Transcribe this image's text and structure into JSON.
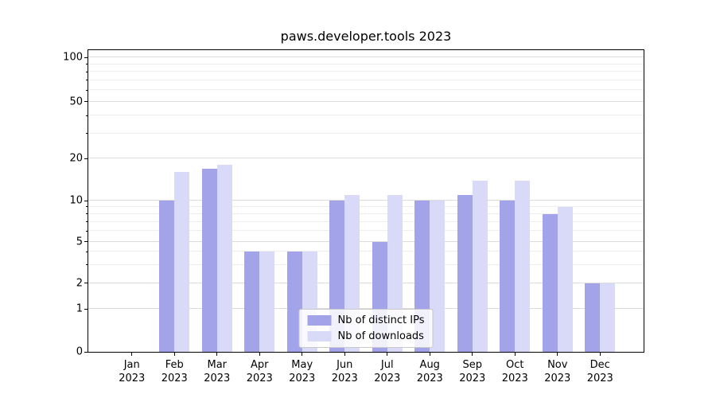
{
  "chart_data": {
    "type": "bar",
    "title": "paws.developer.tools 2023",
    "categories": [
      "Jan",
      "Feb",
      "Mar",
      "Apr",
      "May",
      "Jun",
      "Jul",
      "Aug",
      "Sep",
      "Oct",
      "Nov",
      "Dec"
    ],
    "year": "2023",
    "series": [
      {
        "name": "Nb of distinct IPs",
        "color": "#a3a3ea",
        "values": [
          0,
          10,
          17,
          4,
          4,
          10,
          5,
          10,
          11,
          10,
          8,
          2
        ]
      },
      {
        "name": "Nb of downloads",
        "color": "#d9d9f8",
        "values": [
          0,
          16,
          18,
          4,
          4,
          11,
          11,
          10,
          14,
          14,
          9,
          2
        ]
      }
    ],
    "yticks": [
      0,
      1,
      2,
      5,
      10,
      20,
      50,
      100
    ],
    "yticks_minor": [
      3,
      4,
      6,
      7,
      8,
      9,
      30,
      40,
      60,
      70,
      80,
      90
    ],
    "yscale": "symlog",
    "ylim": [
      0,
      110
    ],
    "xlabel": "",
    "ylabel": "",
    "grid": true,
    "legend_position": "lower center",
    "colors": {
      "grid_major": "#dcdcdc",
      "grid_minor": "#eeeeee",
      "spine": "#000000",
      "text": "#000000",
      "legend_border": "#c9c9c9"
    }
  }
}
